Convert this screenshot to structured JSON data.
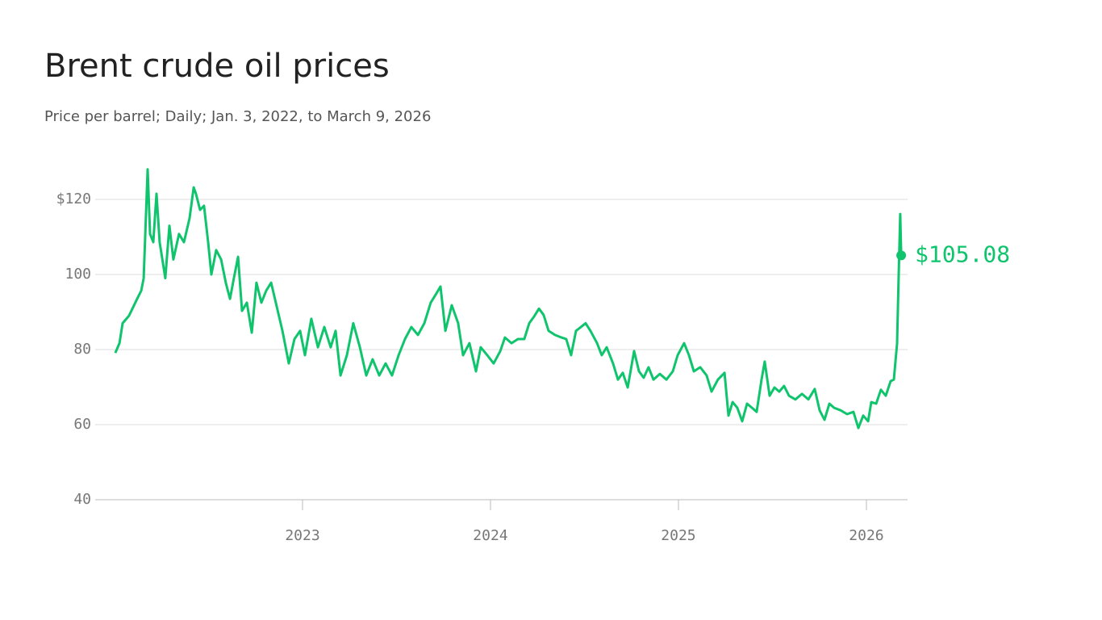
{
  "chart_data": {
    "type": "line",
    "title": "Brent crude oil prices",
    "subtitle": "Price per barrel; Daily; Jan. 3, 2022, to March 9, 2026",
    "x": [
      2022.004,
      2022.026,
      2022.043,
      2022.077,
      2022.12,
      2022.142,
      2022.155,
      2022.176,
      2022.189,
      2022.206,
      2022.223,
      2022.24,
      2022.27,
      2022.292,
      2022.313,
      2022.343,
      2022.369,
      2022.399,
      2022.421,
      2022.433,
      2022.455,
      2022.476,
      2022.498,
      2022.515,
      2022.541,
      2022.567,
      2022.592,
      2022.614,
      2022.635,
      2022.657,
      2022.678,
      2022.704,
      2022.73,
      2022.755,
      2022.781,
      2022.807,
      2022.833,
      2022.858,
      2022.893,
      2022.927,
      2022.957,
      2022.987,
      2023.013,
      2023.047,
      2023.082,
      2023.116,
      2023.15,
      2023.176,
      2023.202,
      2023.236,
      2023.27,
      2023.305,
      2023.339,
      2023.373,
      2023.408,
      2023.442,
      2023.476,
      2023.511,
      2023.545,
      2023.579,
      2023.614,
      2023.648,
      2023.682,
      2023.708,
      2023.734,
      2023.76,
      2023.794,
      2023.828,
      2023.854,
      2023.888,
      2023.923,
      2023.948,
      2023.983,
      2024.017,
      2024.052,
      2024.077,
      2024.112,
      2024.146,
      2024.18,
      2024.206,
      2024.232,
      2024.258,
      2024.283,
      2024.309,
      2024.343,
      2024.378,
      2024.403,
      2024.429,
      2024.455,
      2024.481,
      2024.506,
      2024.532,
      2024.567,
      2024.592,
      2024.618,
      2024.652,
      2024.678,
      2024.704,
      2024.73,
      2024.764,
      2024.79,
      2024.815,
      2024.841,
      2024.867,
      2024.901,
      2024.936,
      2024.97,
      2024.996,
      2025.03,
      2025.056,
      2025.082,
      2025.116,
      2025.15,
      2025.176,
      2025.21,
      2025.245,
      2025.266,
      2025.288,
      2025.313,
      2025.339,
      2025.365,
      2025.391,
      2025.416,
      2025.442,
      2025.459,
      2025.485,
      2025.511,
      2025.536,
      2025.562,
      2025.588,
      2025.622,
      2025.657,
      2025.691,
      2025.725,
      2025.751,
      2025.777,
      2025.803,
      2025.828,
      2025.863,
      2025.897,
      2025.931,
      2025.957,
      2025.983,
      2026.009,
      2026.026,
      2026.052,
      2026.077,
      2026.103,
      2026.129,
      2026.146,
      2026.163,
      2026.172,
      2026.18,
      2026.185
    ],
    "series": [
      {
        "name": "Brent crude",
        "color": "#0fc46c",
        "values": [
          79.1,
          81.7,
          87,
          89,
          93.5,
          95.7,
          99,
          128,
          110.8,
          108.6,
          121.5,
          108.6,
          99,
          113,
          104,
          110.8,
          108.6,
          115,
          123.2,
          121.5,
          117.2,
          118.3,
          108.6,
          100,
          106.5,
          104,
          97.8,
          93.5,
          99,
          104.7,
          90.3,
          92.5,
          84.5,
          97.8,
          92.5,
          95.7,
          97.8,
          92.5,
          85,
          76.3,
          82.8,
          85,
          78.5,
          88.2,
          80.6,
          86,
          80.6,
          85,
          73.1,
          78.5,
          87,
          80.6,
          73.1,
          77.4,
          73.1,
          76.3,
          73.1,
          78.5,
          82.8,
          86,
          83.9,
          87,
          92.5,
          94.6,
          96.8,
          85,
          91.8,
          87,
          78.5,
          81.7,
          74.2,
          80.6,
          78.5,
          76.3,
          79.6,
          83.2,
          81.7,
          82.8,
          82.8,
          87,
          88.8,
          90.9,
          89.2,
          85,
          83.9,
          83.2,
          82.8,
          78.5,
          85,
          86,
          87,
          85,
          81.7,
          78.5,
          80.6,
          76.3,
          72,
          73.8,
          69.9,
          79.6,
          74.2,
          72.5,
          75.3,
          72,
          73.5,
          72,
          74.2,
          78.5,
          81.7,
          78.5,
          74.2,
          75.3,
          73.1,
          68.8,
          72,
          73.8,
          62.4,
          66,
          64.5,
          60.9,
          65.6,
          64.5,
          63.4,
          72,
          76.8,
          67.7,
          69.9,
          68.8,
          70.3,
          67.7,
          66.7,
          68.2,
          66.7,
          69.5,
          63.8,
          61.3,
          65.6,
          64.5,
          63.8,
          62.8,
          63.4,
          59.1,
          62.4,
          60.9,
          66,
          65.6,
          69.3,
          67.7,
          71.6,
          72,
          81.7,
          100,
          116.1,
          105.08
        ]
      }
    ],
    "annotation": {
      "x": 2026.185,
      "value": 105.08,
      "label": "$105.08"
    },
    "xlim": [
      2021.897,
      2026.219
    ],
    "xticks": [
      2023,
      2024,
      2025,
      2026
    ],
    "ylim": [
      40,
      120
    ],
    "yticks": [
      40,
      60,
      80,
      100,
      {
        "value": 120,
        "label": "$120"
      }
    ],
    "grid": true
  }
}
